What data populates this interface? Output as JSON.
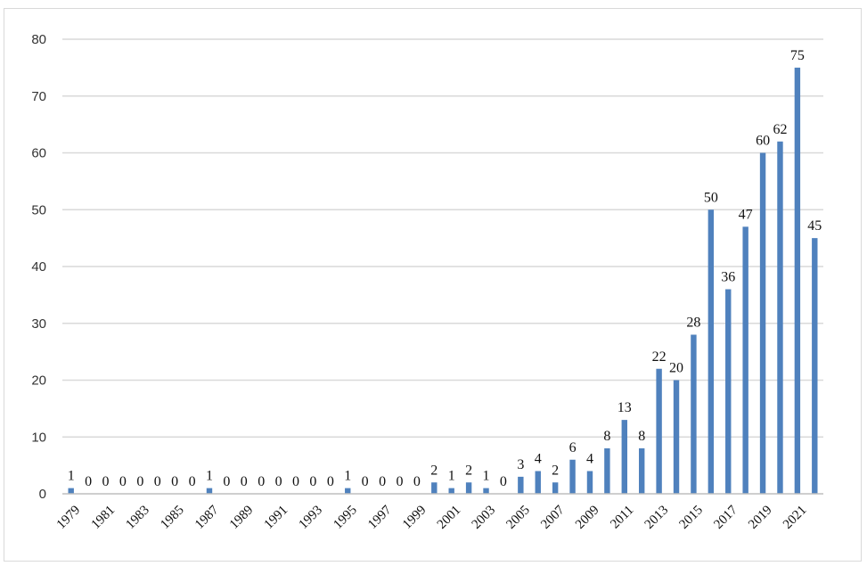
{
  "chart_data": {
    "type": "bar",
    "categories": [
      "1979",
      "1980",
      "1981",
      "1982",
      "1983",
      "1984",
      "1985",
      "1986",
      "1987",
      "1988",
      "1989",
      "1990",
      "1991",
      "1992",
      "1993",
      "1994",
      "1995",
      "1996",
      "1997",
      "1998",
      "1999",
      "2000",
      "2001",
      "2002",
      "2003",
      "2004",
      "2005",
      "2006",
      "2007",
      "2008",
      "2009",
      "2010",
      "2011",
      "2012",
      "2013",
      "2014",
      "2015",
      "2016",
      "2017",
      "2018",
      "2019",
      "2020",
      "2021",
      "2022"
    ],
    "values": [
      1,
      0,
      0,
      0,
      0,
      0,
      0,
      0,
      1,
      0,
      0,
      0,
      0,
      0,
      0,
      0,
      1,
      0,
      0,
      0,
      0,
      2,
      1,
      2,
      1,
      0,
      3,
      4,
      2,
      6,
      4,
      8,
      13,
      8,
      22,
      20,
      28,
      50,
      36,
      47,
      60,
      62,
      75,
      45
    ],
    "ylim": [
      0,
      80
    ],
    "yticks": [
      0,
      10,
      20,
      30,
      40,
      50,
      60,
      70,
      80
    ],
    "xtick_labels_shown": [
      "1979",
      "1981",
      "1983",
      "1985",
      "1987",
      "1989",
      "1991",
      "1993",
      "1995",
      "1997",
      "1999",
      "2001",
      "2003",
      "2005",
      "2007",
      "2009",
      "2011",
      "2013",
      "2015",
      "2017",
      "2019",
      "2021"
    ],
    "bar_color": "#4f81bd",
    "grid": true,
    "legend": "none",
    "data_labels": true
  }
}
